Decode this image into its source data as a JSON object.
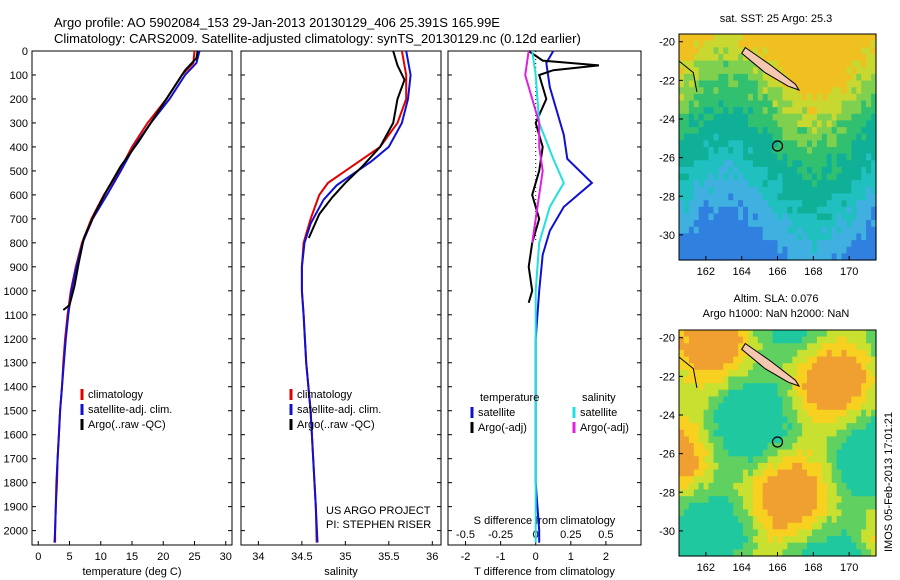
{
  "header": {
    "line1": "Argo profile: AO 5902084_153 29-Jan-2013 20130129_406 25.391S 165.99E",
    "line2": "Climatology: CARS2009. Satellite-adjusted climatology: synTS_20130129.nc (0.12d earlier)"
  },
  "colors": {
    "climatology": "#e00000",
    "satellite": "#1010d0",
    "argo": "#000000",
    "sal_satellite": "#20e0e0",
    "sal_argo": "#e020e0",
    "land": "#f4c8b0"
  },
  "icons": {
    "float_marker": "circle-marker-icon",
    "land": "land-outline-icon"
  },
  "stamp": "IMOS 05-Feb-2013 17:01:21",
  "profiles": {
    "depth_ticks": [
      "0",
      "100",
      "200",
      "300",
      "400",
      "500",
      "600",
      "700",
      "800",
      "900",
      "1000",
      "1100",
      "1200",
      "1300",
      "1400",
      "1500",
      "1600",
      "1700",
      "1800",
      "1900",
      "2000"
    ],
    "depth_values": [
      0,
      100,
      200,
      300,
      400,
      500,
      600,
      700,
      800,
      900,
      1000,
      1100,
      1200,
      1300,
      1400,
      1500,
      1600,
      1700,
      1800,
      1900,
      2000
    ],
    "ylim": [
      0,
      2060
    ]
  },
  "chart_data": [
    {
      "type": "line",
      "xlabel": "temperature (deg C)",
      "xlim": [
        -1,
        31
      ],
      "xticks": [
        "0",
        "5",
        "10",
        "15",
        "20",
        "25",
        "30"
      ],
      "xtick_values": [
        0,
        5,
        10,
        15,
        20,
        25,
        30
      ],
      "legend": [
        "climatology",
        "satellite-adj. clim.",
        "Argo(..raw -QC)"
      ],
      "series": [
        {
          "name": "climatology",
          "points": [
            [
              25,
              0
            ],
            [
              24.8,
              50
            ],
            [
              23,
              100
            ],
            [
              20.5,
              200
            ],
            [
              17.5,
              300
            ],
            [
              15,
              400
            ],
            [
              13,
              500
            ],
            [
              10.5,
              600
            ],
            [
              8.5,
              700
            ],
            [
              7,
              800
            ],
            [
              6,
              900
            ],
            [
              5.2,
              1000
            ],
            [
              4.7,
              1100
            ],
            [
              4.3,
              1200
            ],
            [
              4,
              1300
            ],
            [
              3.8,
              1400
            ],
            [
              3.5,
              1500
            ],
            [
              3.3,
              1600
            ],
            [
              3.1,
              1700
            ],
            [
              3,
              1800
            ],
            [
              2.8,
              1900
            ],
            [
              2.7,
              2000
            ],
            [
              2.7,
              2050
            ]
          ]
        },
        {
          "name": "satellite-adj. clim.",
          "points": [
            [
              25.8,
              0
            ],
            [
              25.3,
              50
            ],
            [
              23.5,
              100
            ],
            [
              21,
              200
            ],
            [
              18,
              300
            ],
            [
              15.3,
              400
            ],
            [
              13.2,
              500
            ],
            [
              11,
              600
            ],
            [
              8.7,
              700
            ],
            [
              7.1,
              800
            ],
            [
              6.1,
              900
            ],
            [
              5.3,
              1000
            ],
            [
              4.8,
              1100
            ],
            [
              4.4,
              1200
            ],
            [
              4.1,
              1300
            ],
            [
              3.8,
              1400
            ],
            [
              3.5,
              1500
            ],
            [
              3.3,
              1600
            ],
            [
              3.1,
              1700
            ],
            [
              2.9,
              1800
            ],
            [
              2.8,
              1900
            ],
            [
              2.7,
              2000
            ],
            [
              2.6,
              2050
            ]
          ]
        },
        {
          "name": "Argo(..raw -QC)",
          "points": [
            [
              25.5,
              0
            ],
            [
              25.3,
              30
            ],
            [
              23.5,
              80
            ],
            [
              21,
              180
            ],
            [
              18.5,
              280
            ],
            [
              16,
              380
            ],
            [
              13.2,
              480
            ],
            [
              11,
              580
            ],
            [
              9,
              680
            ],
            [
              7.3,
              780
            ],
            [
              6.5,
              880
            ],
            [
              5.8,
              980
            ],
            [
              5,
              1060
            ],
            [
              4,
              1080
            ]
          ]
        }
      ]
    },
    {
      "type": "line",
      "xlabel": "salinity",
      "xlim": [
        33.8,
        36.1
      ],
      "xticks": [
        "34",
        "34.5",
        "35",
        "35.5",
        "36"
      ],
      "xtick_values": [
        34,
        34.5,
        35,
        35.5,
        36
      ],
      "legend": [
        "climatology",
        "satellite-adj. clim.",
        "Argo(..raw -QC)"
      ],
      "annotation": [
        "US ARGO PROJECT",
        "PI: STEPHEN RISER"
      ],
      "series": [
        {
          "name": "climatology",
          "points": [
            [
              35.65,
              0
            ],
            [
              35.7,
              100
            ],
            [
              35.7,
              200
            ],
            [
              35.6,
              300
            ],
            [
              35.4,
              400
            ],
            [
              35.2,
              450
            ],
            [
              35.0,
              500
            ],
            [
              34.8,
              550
            ],
            [
              34.7,
              600
            ],
            [
              34.6,
              700
            ],
            [
              34.52,
              800
            ],
            [
              34.5,
              900
            ],
            [
              34.5,
              1000
            ],
            [
              34.52,
              1100
            ],
            [
              34.55,
              1300
            ],
            [
              34.6,
              1500
            ],
            [
              34.63,
              1700
            ],
            [
              34.66,
              1900
            ],
            [
              34.67,
              2050
            ]
          ]
        },
        {
          "name": "satellite-adj. clim.",
          "points": [
            [
              35.7,
              0
            ],
            [
              35.75,
              100
            ],
            [
              35.72,
              200
            ],
            [
              35.65,
              300
            ],
            [
              35.5,
              400
            ],
            [
              35.3,
              460
            ],
            [
              35.1,
              510
            ],
            [
              34.9,
              560
            ],
            [
              34.75,
              620
            ],
            [
              34.6,
              720
            ],
            [
              34.53,
              800
            ],
            [
              34.5,
              900
            ],
            [
              34.5,
              1000
            ],
            [
              34.52,
              1100
            ],
            [
              34.55,
              1300
            ],
            [
              34.6,
              1500
            ],
            [
              34.63,
              1700
            ],
            [
              34.66,
              1900
            ],
            [
              34.68,
              2050
            ]
          ]
        },
        {
          "name": "Argo(..raw -QC)",
          "points": [
            [
              35.55,
              0
            ],
            [
              35.6,
              60
            ],
            [
              35.68,
              120
            ],
            [
              35.6,
              200
            ],
            [
              35.55,
              300
            ],
            [
              35.4,
              400
            ],
            [
              35.2,
              480
            ],
            [
              35.0,
              550
            ],
            [
              34.85,
              610
            ],
            [
              34.7,
              680
            ],
            [
              34.58,
              780
            ]
          ]
        }
      ]
    },
    {
      "type": "line",
      "xlabel": "T difference from climatology",
      "x2label": "S difference from climatology",
      "xlim": [
        -2.5,
        3
      ],
      "xticks": [
        "-2",
        "-1",
        "0",
        "1",
        "2"
      ],
      "xtick_values": [
        -2,
        -1,
        0,
        1,
        2
      ],
      "x2ticks": [
        "-0.5",
        "-0.25",
        "0",
        "0.25",
        "0.5"
      ],
      "x2tick_values": [
        -0.5,
        -0.25,
        0,
        0.25,
        0.5
      ],
      "legend_temperature": [
        "temperature",
        "satellite",
        "Argo(-adj)"
      ],
      "legend_salinity": [
        "salinity",
        "satellite",
        "Argo(-adj)"
      ],
      "series": [
        {
          "name": "satellite",
          "points": [
            [
              0.5,
              0
            ],
            [
              0.3,
              50
            ],
            [
              0.4,
              150
            ],
            [
              0.6,
              250
            ],
            [
              0.8,
              350
            ],
            [
              0.9,
              450
            ],
            [
              1.6,
              550
            ],
            [
              0.8,
              650
            ],
            [
              0.4,
              750
            ],
            [
              0.2,
              850
            ],
            [
              0.1,
              1000
            ],
            [
              0,
              1200
            ],
            [
              0,
              1500
            ],
            [
              0,
              1800
            ],
            [
              0.1,
              2000
            ],
            [
              0.1,
              2050
            ]
          ]
        },
        {
          "name": "Argo(-adj)",
          "points": [
            [
              -0.2,
              0
            ],
            [
              0.2,
              40
            ],
            [
              1.8,
              60
            ],
            [
              0.5,
              80
            ],
            [
              0.1,
              100
            ],
            [
              0.3,
              200
            ],
            [
              0.0,
              300
            ],
            [
              0.2,
              400
            ],
            [
              0.1,
              500
            ],
            [
              -0.1,
              600
            ],
            [
              0.1,
              700
            ],
            [
              -0.1,
              800
            ],
            [
              -0.2,
              900
            ],
            [
              -0.1,
              1000
            ],
            [
              -0.2,
              1050
            ]
          ]
        },
        {
          "name": "salinity satellite",
          "points": [
            [
              -0.1,
              0
            ],
            [
              0.0,
              100
            ],
            [
              0.1,
              300
            ],
            [
              0.5,
              450
            ],
            [
              0.8,
              550
            ],
            [
              0.4,
              650
            ],
            [
              0.1,
              800
            ],
            [
              0,
              1000
            ],
            [
              0,
              1400
            ],
            [
              0,
              1800
            ],
            [
              0,
              2050
            ]
          ]
        },
        {
          "name": "salinity Argo(-adj)",
          "points": [
            [
              -0.2,
              0
            ],
            [
              -0.3,
              100
            ],
            [
              -0.1,
              200
            ],
            [
              0.1,
              300
            ],
            [
              0.1,
              400
            ],
            [
              0.2,
              500
            ],
            [
              0.1,
              600
            ],
            [
              0.0,
              700
            ],
            [
              -0.1,
              800
            ]
          ]
        }
      ]
    },
    {
      "type": "heatmap",
      "title": "sat. SST: 25  Argo: 25.3",
      "xticks": [
        "162",
        "164",
        "166",
        "168",
        "170"
      ],
      "xtick_values": [
        162,
        164,
        166,
        168,
        170
      ],
      "yticks": [
        "-20",
        "-22",
        "-24",
        "-26",
        "-28",
        "-30"
      ],
      "ytick_values": [
        -20,
        -22,
        -24,
        -26,
        -28,
        -30
      ],
      "xlim": [
        160.5,
        171.5
      ],
      "ylim": [
        -31.3,
        -19.6
      ],
      "marker": [
        166,
        -25.4
      ]
    },
    {
      "type": "heatmap",
      "title": "Altim. SLA: 0.076",
      "subtitle": "Argo h1000: NaN h2000: NaN",
      "xticks": [
        "162",
        "164",
        "166",
        "168",
        "170"
      ],
      "xtick_values": [
        162,
        164,
        166,
        168,
        170
      ],
      "yticks": [
        "-20",
        "-22",
        "-24",
        "-26",
        "-28",
        "-30"
      ],
      "ytick_values": [
        -20,
        -22,
        -24,
        -26,
        -28,
        -30
      ],
      "xlim": [
        160.5,
        171.5
      ],
      "ylim": [
        -31.3,
        -19.6
      ],
      "marker": [
        166,
        -25.4
      ]
    }
  ]
}
